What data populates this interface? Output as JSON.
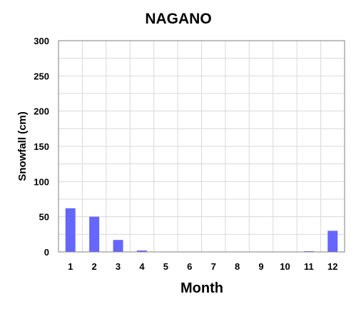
{
  "chart_data": {
    "type": "bar",
    "title": "NAGANO",
    "xlabel": "Month",
    "ylabel": "Snowfall (cm)",
    "categories": [
      "1",
      "2",
      "3",
      "4",
      "5",
      "6",
      "7",
      "8",
      "9",
      "10",
      "11",
      "12"
    ],
    "values": [
      62,
      50,
      17,
      2,
      0,
      0,
      0,
      0,
      0,
      0,
      1,
      30
    ],
    "ylim": [
      0,
      300
    ],
    "yticks": [
      0,
      50,
      100,
      150,
      200,
      250,
      300
    ],
    "grid": true,
    "bar_color": "#6666ff",
    "grid_color": "#d9d9d9",
    "legend": "none"
  }
}
